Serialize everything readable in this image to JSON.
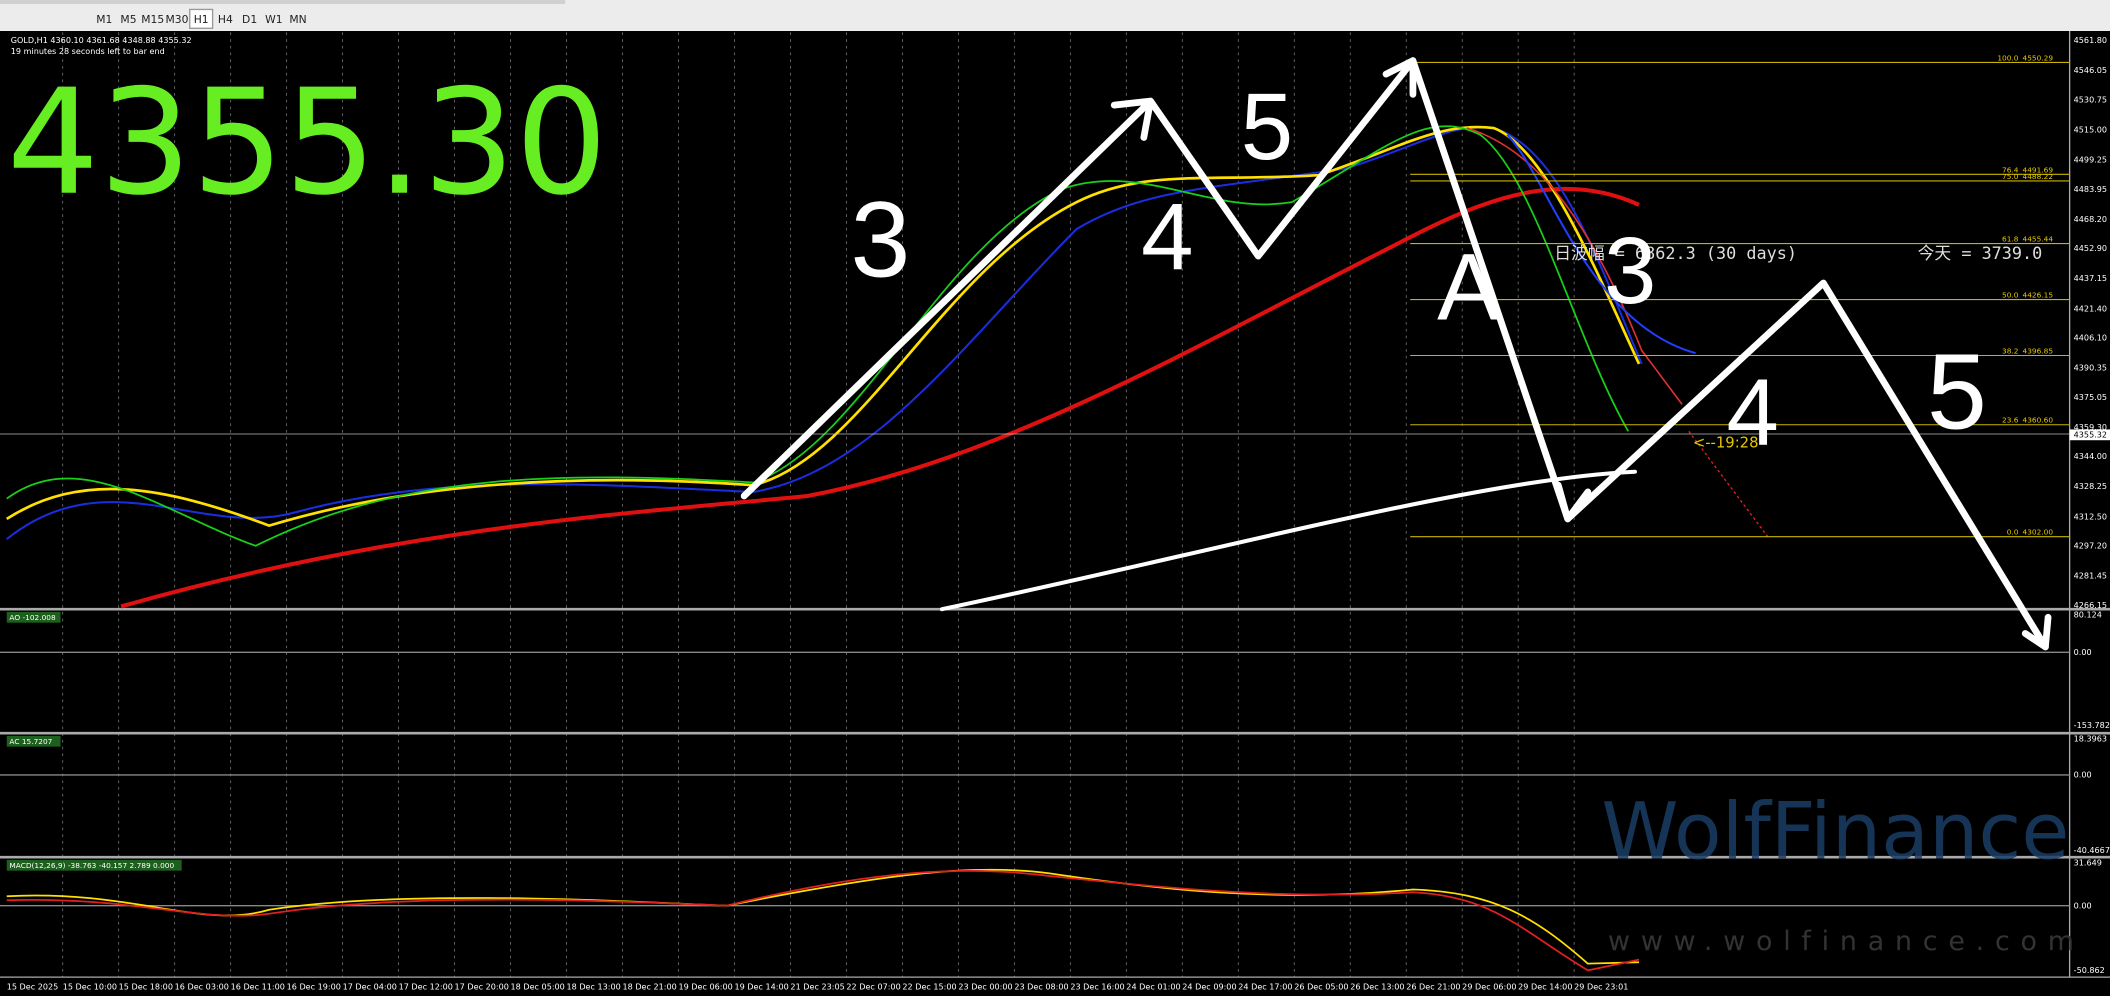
{
  "toolbar": {
    "periods": [
      "M1",
      "M5",
      "M15",
      "M30",
      "H1",
      "H4",
      "D1",
      "W1",
      "MN"
    ]
  },
  "chart": {
    "symbol_info": "GOLD,H1  4360.10 4361.68 4348.88 4355.32",
    "countdown": "19 minutes 28 seconds left to bar end",
    "big_price": "4355.30",
    "current_price": "4355.32",
    "bar_timer": "<--19:28",
    "range_text": "日波幅 = 6862.3  (30 days)",
    "today_text": "今天 = 3739.0",
    "wave_labels": [
      "3",
      "4",
      "5",
      "A",
      "3",
      "4",
      "5"
    ],
    "price_axis": [
      "4561.80",
      "4546.05",
      "4530.75",
      "4515.00",
      "4499.25",
      "4483.95",
      "4468.20",
      "4452.90",
      "4437.15",
      "4421.40",
      "4406.10",
      "4390.35",
      "4375.05",
      "4359.30",
      "4344.00",
      "4328.25",
      "4312.50",
      "4297.20",
      "4281.45",
      "4266.15"
    ],
    "fib_levels": [
      {
        "level": "100.0",
        "price": "4550.29"
      },
      {
        "level": "76.4",
        "price": "4491.69"
      },
      {
        "level": "75.0",
        "price": "4488.22"
      },
      {
        "level": "61.8",
        "price": "4455.44"
      },
      {
        "level": "50.0",
        "price": "4426.15"
      },
      {
        "level": "38.2",
        "price": "4396.85"
      },
      {
        "level": "23.6",
        "price": "4360.60"
      },
      {
        "level": "0.0",
        "price": "4302.00"
      }
    ]
  },
  "indicators": [
    {
      "label": "AO -102.008",
      "axis": [
        "80.124",
        "0.00",
        "-153.782"
      ]
    },
    {
      "label": "AC 15.7207",
      "axis": [
        "18.3963",
        "0.00",
        "-40.4667"
      ]
    },
    {
      "label": "MACD(12,26,9) -38.763 -40.157 2.789 0.000",
      "axis": [
        "31.649",
        "0.00",
        "-50.862"
      ]
    }
  ],
  "time_axis": [
    "15 Dec 2025",
    "15 Dec 10:00",
    "15 Dec 18:00",
    "16 Dec 03:00",
    "16 Dec 11:00",
    "16 Dec 19:00",
    "17 Dec 04:00",
    "17 Dec 12:00",
    "17 Dec 20:00",
    "18 Dec 05:00",
    "18 Dec 13:00",
    "18 Dec 21:00",
    "19 Dec 06:00",
    "19 Dec 14:00",
    "21 Dec 23:05",
    "22 Dec 07:00",
    "22 Dec 15:00",
    "23 Dec 00:00",
    "23 Dec 08:00",
    "23 Dec 16:00",
    "24 Dec 01:00",
    "24 Dec 09:00",
    "24 Dec 17:00",
    "26 Dec 05:00",
    "26 Dec 13:00",
    "26 Dec 21:00",
    "29 Dec 06:00",
    "29 Dec 14:00",
    "29 Dec 23:01"
  ],
  "watermark": {
    "brand": "WolfFinance",
    "url": "www.wolfinance.com"
  }
}
